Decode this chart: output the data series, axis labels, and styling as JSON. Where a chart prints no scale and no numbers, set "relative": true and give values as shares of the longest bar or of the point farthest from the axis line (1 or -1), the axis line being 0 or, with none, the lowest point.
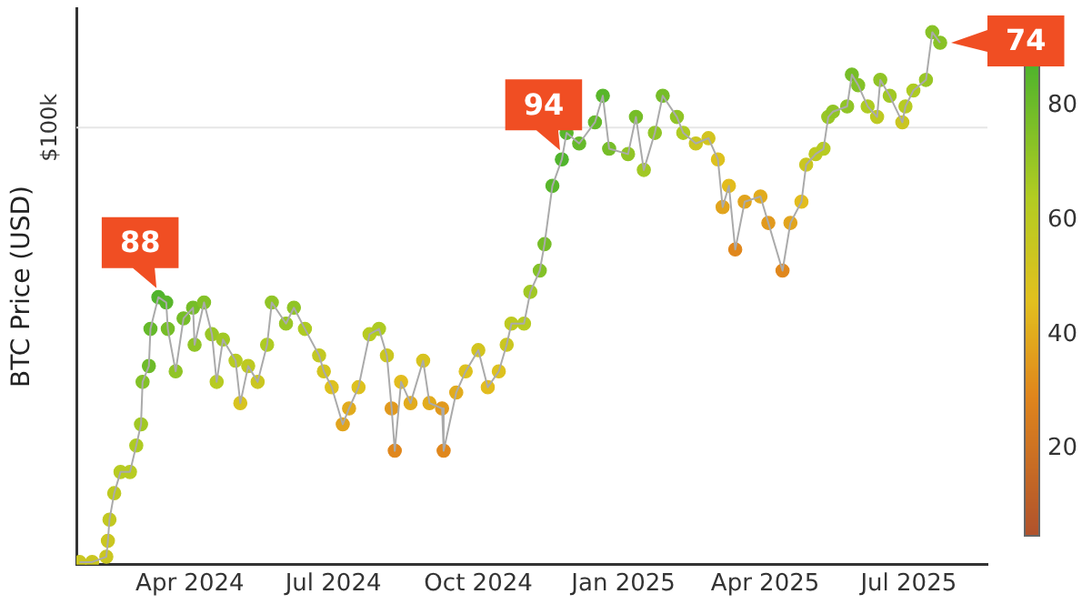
{
  "chart_data": {
    "type": "scatter",
    "ylabel": "BTC Price (USD)",
    "relative": true,
    "x": [
      "2024-01-22",
      "2024-01-30",
      "2024-02-08",
      "2024-02-09",
      "2024-02-10",
      "2024-02-13",
      "2024-02-17",
      "2024-02-23",
      "2024-02-27",
      "2024-03-01",
      "2024-03-02",
      "2024-03-06",
      "2024-03-07",
      "2024-03-12",
      "2024-03-17",
      "2024-03-18",
      "2024-03-23",
      "2024-03-28",
      "2024-04-03",
      "2024-04-04",
      "2024-04-10",
      "2024-04-15",
      "2024-04-18",
      "2024-04-22",
      "2024-04-30",
      "2024-05-03",
      "2024-05-08",
      "2024-05-14",
      "2024-05-20",
      "2024-05-23",
      "2024-06-01",
      "2024-06-06",
      "2024-06-13",
      "2024-06-22",
      "2024-06-25",
      "2024-06-30",
      "2024-07-07",
      "2024-07-11",
      "2024-07-17",
      "2024-07-24",
      "2024-07-30",
      "2024-08-04",
      "2024-08-07",
      "2024-08-09",
      "2024-08-13",
      "2024-08-19",
      "2024-08-27",
      "2024-08-31",
      "2024-09-08",
      "2024-09-09",
      "2024-09-17",
      "2024-09-23",
      "2024-10-01",
      "2024-10-07",
      "2024-10-14",
      "2024-10-19",
      "2024-10-22",
      "2024-10-30",
      "2024-11-03",
      "2024-11-09",
      "2024-11-12",
      "2024-11-17",
      "2024-11-23",
      "2024-11-26",
      "2024-12-04",
      "2024-12-14",
      "2024-12-19",
      "2024-12-23",
      "2025-01-04",
      "2025-01-09",
      "2025-01-14",
      "2025-01-21",
      "2025-01-26",
      "2025-02-04",
      "2025-02-08",
      "2025-02-16",
      "2025-02-24",
      "2025-03-02",
      "2025-03-05",
      "2025-03-09",
      "2025-03-13",
      "2025-03-19",
      "2025-03-29",
      "2025-04-03",
      "2025-04-12",
      "2025-04-17",
      "2025-04-24",
      "2025-04-27",
      "2025-05-03",
      "2025-05-08",
      "2025-05-11",
      "2025-05-14",
      "2025-05-23",
      "2025-05-26",
      "2025-05-30",
      "2025-06-05",
      "2025-06-11",
      "2025-06-13",
      "2025-06-19",
      "2025-06-27",
      "2025-06-29",
      "2025-07-04",
      "2025-07-12",
      "2025-07-16",
      "2025-07-21"
    ],
    "series": [
      {
        "type": "line",
        "color": "#aaaaaa",
        "line_style": "solid",
        "marker": "none",
        "values": [
          0,
          0,
          0.01,
          0.04,
          0.08,
          0.13,
          0.17,
          0.17,
          0.22,
          0.26,
          0.34,
          0.37,
          0.44,
          0.5,
          0.49,
          0.44,
          0.36,
          0.46,
          0.48,
          0.41,
          0.49,
          0.43,
          0.34,
          0.42,
          0.38,
          0.3,
          0.37,
          0.34,
          0.41,
          0.49,
          0.45,
          0.48,
          0.44,
          0.39,
          0.36,
          0.33,
          0.26,
          0.29,
          0.33,
          0.43,
          0.44,
          0.39,
          0.29,
          0.21,
          0.34,
          0.3,
          0.38,
          0.3,
          0.29,
          0.21,
          0.32,
          0.36,
          0.4,
          0.33,
          0.36,
          0.41,
          0.45,
          0.45,
          0.51,
          0.55,
          0.6,
          0.71,
          0.76,
          0.81,
          0.79,
          0.83,
          0.88,
          0.78,
          0.77,
          0.84,
          0.74,
          0.81,
          0.88,
          0.84,
          0.81,
          0.79,
          0.8,
          0.76,
          0.67,
          0.71,
          0.59,
          0.68,
          0.69,
          0.64,
          0.55,
          0.64,
          0.68,
          0.75,
          0.77,
          0.78,
          0.84,
          0.85,
          0.86,
          0.92,
          0.9,
          0.86,
          0.84,
          0.91,
          0.88,
          0.83,
          0.86,
          0.89,
          0.91,
          1,
          0.98
        ]
      },
      {
        "type": "scatter",
        "marker": "circle",
        "values": [
          0,
          0,
          0.01,
          0.04,
          0.08,
          0.13,
          0.17,
          0.17,
          0.22,
          0.26,
          0.34,
          0.37,
          0.44,
          0.5,
          0.49,
          0.44,
          0.36,
          0.46,
          0.48,
          0.41,
          0.49,
          0.43,
          0.34,
          0.42,
          0.38,
          0.3,
          0.37,
          0.34,
          0.41,
          0.49,
          0.45,
          0.48,
          0.44,
          0.39,
          0.36,
          0.33,
          0.26,
          0.29,
          0.33,
          0.43,
          0.44,
          0.39,
          0.29,
          0.21,
          0.34,
          0.3,
          0.38,
          0.3,
          0.29,
          0.21,
          0.32,
          0.36,
          0.4,
          0.33,
          0.36,
          0.41,
          0.45,
          0.45,
          0.51,
          0.55,
          0.6,
          0.71,
          0.76,
          0.81,
          0.79,
          0.83,
          0.88,
          0.78,
          0.77,
          0.84,
          0.74,
          0.81,
          0.88,
          0.84,
          0.81,
          0.79,
          0.8,
          0.76,
          0.67,
          0.71,
          0.59,
          0.68,
          0.69,
          0.64,
          0.55,
          0.64,
          0.68,
          0.75,
          0.77,
          0.78,
          0.84,
          0.85,
          0.86,
          0.92,
          0.9,
          0.86,
          0.84,
          0.91,
          0.88,
          0.83,
          0.86,
          0.89,
          0.91,
          1,
          0.98
        ],
        "colors": [
          "#cac620",
          "#cac620",
          "#cac620",
          "#cac620",
          "#c2c821",
          "#bdc921",
          "#b7cb22",
          "#b7cb22",
          "#aecb22",
          "#a1c824",
          "#83c127",
          "#6ebb29",
          "#65b92a",
          "#50b42c",
          "#58b62b",
          "#76bd28",
          "#90c426",
          "#76bd28",
          "#76bd28",
          "#90c426",
          "#83c127",
          "#99c625",
          "#b7cb22",
          "#a1c824",
          "#b7cb22",
          "#d7c31f",
          "#bdc921",
          "#cac620",
          "#aecb22",
          "#90c426",
          "#99c625",
          "#90c426",
          "#aecb22",
          "#c2c821",
          "#d2c41f",
          "#ddc11e",
          "#e1a41d",
          "#e1ab1d",
          "#ddc11e",
          "#b7cb22",
          "#aecb22",
          "#cac620",
          "#e1991d",
          "#e0871c",
          "#e2bc1e",
          "#e1ab1d",
          "#d7c31f",
          "#e1ab1d",
          "#e1991d",
          "#e0871c",
          "#e1ab1d",
          "#ddc11e",
          "#d2c41f",
          "#e2bc1e",
          "#ddc11e",
          "#cac620",
          "#bdc921",
          "#b7cb22",
          "#a1c824",
          "#83c127",
          "#76bd28",
          "#58b62b",
          "#50b42c",
          "#58b62b",
          "#65b92a",
          "#65b92a",
          "#58b62b",
          "#76bd28",
          "#90c426",
          "#76bd28",
          "#a1c824",
          "#90c426",
          "#76bd28",
          "#90c426",
          "#aecb22",
          "#cac620",
          "#d2c41f",
          "#ddc11e",
          "#e1a41d",
          "#e2bc1e",
          "#e0871c",
          "#e1a41d",
          "#e1ab1d",
          "#e1991d",
          "#e0871c",
          "#e1a41d",
          "#e2bc1e",
          "#cac620",
          "#bdc921",
          "#b7cb22",
          "#99c625",
          "#90c426",
          "#90c426",
          "#76bd28",
          "#83c127",
          "#aecb22",
          "#bdc921",
          "#90c426",
          "#a1c824",
          "#cac620",
          "#b7cb22",
          "#aecb22",
          "#99c625",
          "#88c226",
          "#88c226"
        ],
        "cvalues": [
          55,
          55,
          55,
          55,
          58,
          60,
          62,
          62,
          65,
          68,
          75,
          80,
          82,
          87,
          85,
          78,
          72,
          78,
          78,
          72,
          75,
          70,
          62,
          68,
          62,
          50,
          60,
          55,
          65,
          72,
          70,
          72,
          65,
          58,
          52,
          48,
          38,
          40,
          48,
          62,
          65,
          55,
          35,
          30,
          45,
          40,
          50,
          40,
          35,
          30,
          40,
          48,
          52,
          45,
          48,
          55,
          60,
          62,
          68,
          75,
          78,
          85,
          87,
          85,
          82,
          82,
          85,
          78,
          72,
          78,
          68,
          72,
          78,
          72,
          65,
          55,
          52,
          48,
          38,
          45,
          30,
          38,
          40,
          35,
          30,
          38,
          45,
          55,
          60,
          62,
          70,
          72,
          72,
          78,
          75,
          65,
          60,
          72,
          68,
          55,
          62,
          65,
          70,
          74,
          74
        ]
      }
    ],
    "clim": [
      5,
      87
    ],
    "cticks": [
      20,
      40,
      60,
      80
    ],
    "xlim": [
      "2024-01-20",
      "2025-08-20"
    ],
    "xticks": [
      {
        "value": "2024-04-01",
        "label": "Apr 2024"
      },
      {
        "value": "2024-07-01",
        "label": "Jul 2024"
      },
      {
        "value": "2024-10-01",
        "label": "Oct 2024"
      },
      {
        "value": "2025-01-01",
        "label": "Jan 2025"
      },
      {
        "value": "2025-04-01",
        "label": "Apr 2025"
      },
      {
        "value": "2025-07-01",
        "label": "Jul 2025"
      }
    ],
    "ref_lines": [
      {
        "axis": "y",
        "value": 0.82,
        "label": "$100k",
        "color": "#e6e6e6"
      }
    ],
    "annotations": [
      {
        "text": "88",
        "x": "2024-03-12",
        "y": 0.5
      },
      {
        "text": "94",
        "x": "2024-11-23",
        "y": 0.76
      },
      {
        "text": "74",
        "x": "2025-07-21",
        "y": 0.98
      }
    ]
  }
}
